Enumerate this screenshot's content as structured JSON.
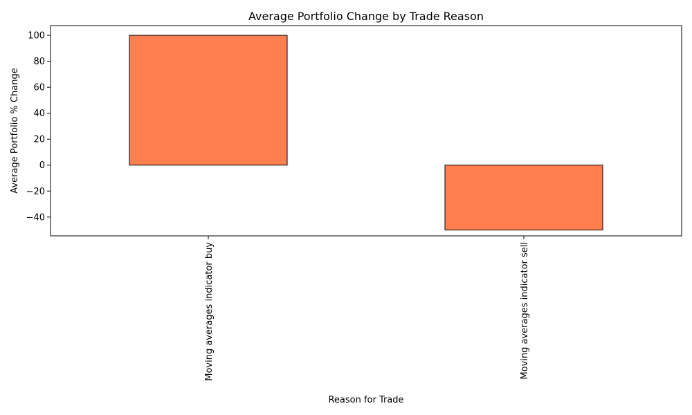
{
  "chart_data": {
    "type": "bar",
    "title": "Average Portfolio Change by Trade Reason",
    "xlabel": "Reason for Trade",
    "ylabel": "Average Portfolio % Change",
    "categories": [
      "Moving averages indicator buy",
      "Moving averages indicator sell"
    ],
    "values": [
      100,
      -50
    ],
    "ylim": [
      -54.5,
      107.5
    ],
    "yticks": [
      -40,
      -20,
      0,
      20,
      40,
      60,
      80,
      100
    ],
    "ytick_labels": [
      "−40",
      "−20",
      "0",
      "20",
      "40",
      "60",
      "80",
      "100"
    ],
    "grid": false,
    "legend": "none",
    "bar_color": "#ff7f50",
    "bar_edge_color": "#000000",
    "x_tick_rotation": "vertical"
  }
}
